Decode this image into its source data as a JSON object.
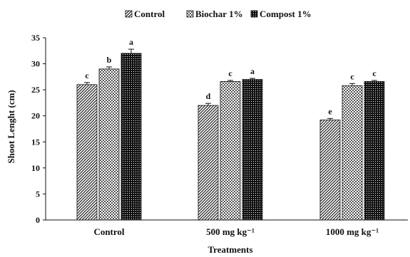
{
  "chart_data": {
    "type": "bar",
    "xlabel": "Treatments",
    "ylabel": "Shoot Lenght (cm)",
    "ylim": [
      0,
      35
    ],
    "yticks": [
      0,
      5,
      10,
      15,
      20,
      25,
      30,
      35
    ],
    "grid": false,
    "legend_position": "top-center",
    "categories": [
      "Control",
      "500 mg kg⁻¹",
      "1000 mg kg⁻¹"
    ],
    "series": [
      {
        "name": "Control",
        "pattern": "diagonal-hatch",
        "values": [
          26,
          22,
          19.2
        ],
        "errors": [
          0.4,
          0.4,
          0.3
        ],
        "letters": [
          "c",
          "d",
          "e"
        ]
      },
      {
        "name": "Biochar 1%",
        "pattern": "checkered-grid",
        "values": [
          29,
          26.6,
          25.8
        ],
        "errors": [
          0.4,
          0.2,
          0.4
        ],
        "letters": [
          "b",
          "c",
          "c"
        ]
      },
      {
        "name": "Compost 1%",
        "pattern": "dense-dark-check",
        "values": [
          32,
          27,
          26.6
        ],
        "errors": [
          0.8,
          0.2,
          0.2
        ],
        "letters": [
          "a",
          "a",
          "c"
        ]
      }
    ]
  }
}
